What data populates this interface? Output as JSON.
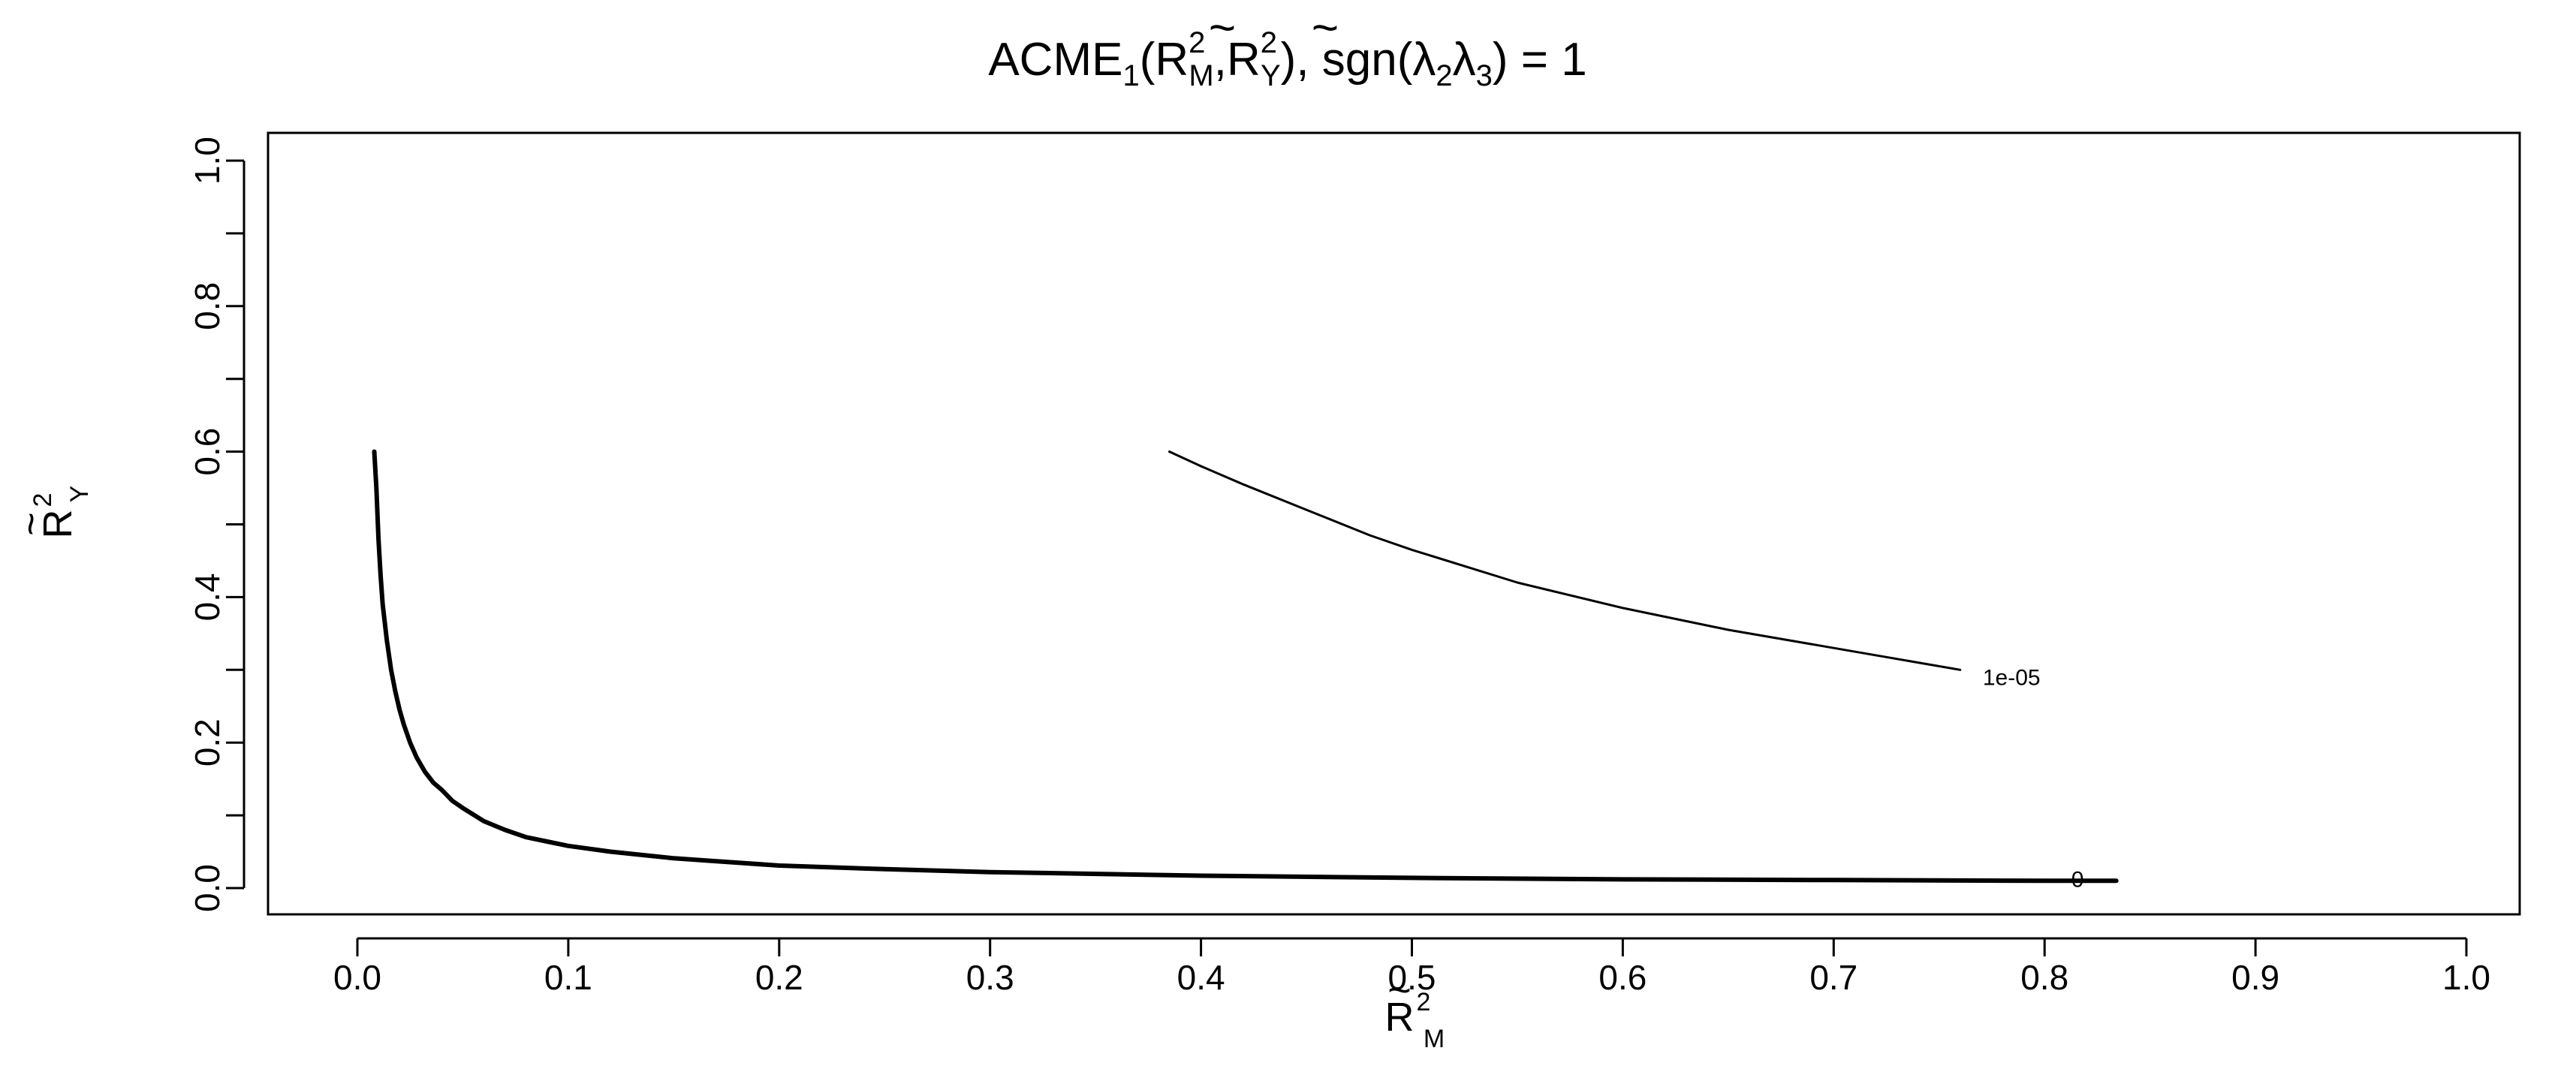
{
  "chart_data": {
    "type": "line",
    "title": {
      "main": "ACME",
      "main_sub": "1",
      "open": "(",
      "r_tilde": "~",
      "r_letter": "R",
      "sup": "2",
      "sub_m": "M",
      "comma": ",",
      "sub_y": "Y",
      "close": "),",
      "sgn_text": " sgn(",
      "lambda": "λ",
      "lambda_sub_1": "2",
      "lambda_sub_2": "3",
      "end": ") = 1"
    },
    "xlabel": {
      "tilde": "~",
      "letter": "R",
      "sup": "2",
      "sub": "M"
    },
    "ylabel": {
      "tilde": "~",
      "letter": "R",
      "sup": "2",
      "sub": "Y"
    },
    "xlim": [
      0.0,
      1.0
    ],
    "ylim": [
      0.0,
      1.0
    ],
    "x_ticks": [
      "0.0",
      "0.1",
      "0.2",
      "0.3",
      "0.4",
      "0.5",
      "0.6",
      "0.7",
      "0.8",
      "0.9",
      "1.0"
    ],
    "y_ticks": [
      "0.0",
      "0.2",
      "0.4",
      "0.6",
      "0.8",
      "1.0"
    ],
    "y_minor_ticks": [
      0.1,
      0.3,
      0.5,
      0.7,
      0.9
    ],
    "grid": false,
    "series": [
      {
        "label": "0",
        "stroke": "#000000",
        "width": "thick",
        "x": [
          0.008,
          0.009,
          0.01,
          0.011,
          0.012,
          0.014,
          0.016,
          0.018,
          0.02,
          0.022,
          0.025,
          0.028,
          0.032,
          0.036,
          0.04,
          0.045,
          0.05,
          0.06,
          0.07,
          0.08,
          0.09,
          0.1,
          0.12,
          0.15,
          0.2,
          0.25,
          0.3,
          0.4,
          0.5,
          0.6,
          0.7,
          0.8,
          0.834
        ],
        "y": [
          0.6,
          0.55,
          0.48,
          0.43,
          0.39,
          0.34,
          0.3,
          0.27,
          0.245,
          0.225,
          0.2,
          0.18,
          0.16,
          0.145,
          0.135,
          0.12,
          0.11,
          0.092,
          0.08,
          0.07,
          0.064,
          0.058,
          0.05,
          0.041,
          0.031,
          0.026,
          0.022,
          0.017,
          0.014,
          0.012,
          0.011,
          0.01,
          0.01
        ]
      },
      {
        "label": "1e-05",
        "stroke": "#000000",
        "width": "thin",
        "x": [
          0.385,
          0.4,
          0.42,
          0.45,
          0.48,
          0.5,
          0.55,
          0.6,
          0.65,
          0.7,
          0.74,
          0.76
        ],
        "y": [
          0.6,
          0.58,
          0.555,
          0.52,
          0.485,
          0.465,
          0.42,
          0.385,
          0.355,
          0.33,
          0.31,
          0.3
        ]
      }
    ]
  }
}
